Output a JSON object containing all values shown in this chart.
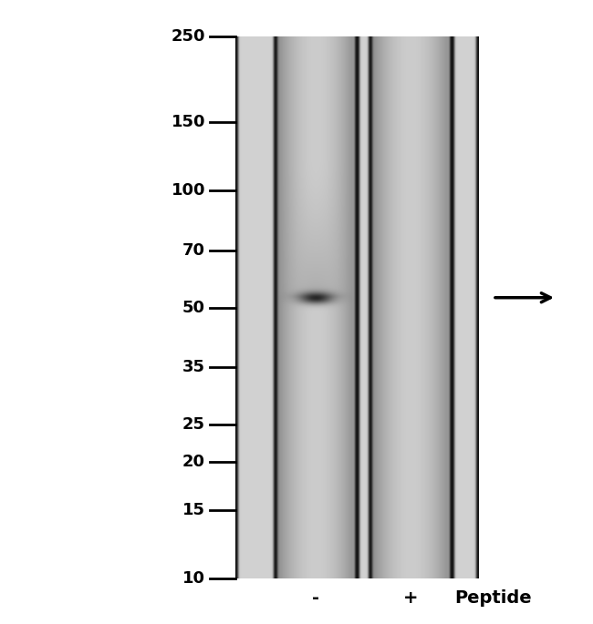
{
  "mw_labels": [
    "250",
    "150",
    "100",
    "70",
    "50",
    "35",
    "25",
    "20",
    "15",
    "10"
  ],
  "mw_values": [
    250,
    150,
    100,
    70,
    50,
    35,
    25,
    20,
    15,
    10
  ],
  "lane_labels": [
    "-",
    "+"
  ],
  "peptide_label": "Peptide",
  "arrow_at_mw": 53,
  "background_color": "#ffffff",
  "gel_bg_light": "#c8c8c8",
  "gel_bg_dark": "#101010",
  "band_mw": 53,
  "fig_width": 6.5,
  "fig_height": 6.85
}
